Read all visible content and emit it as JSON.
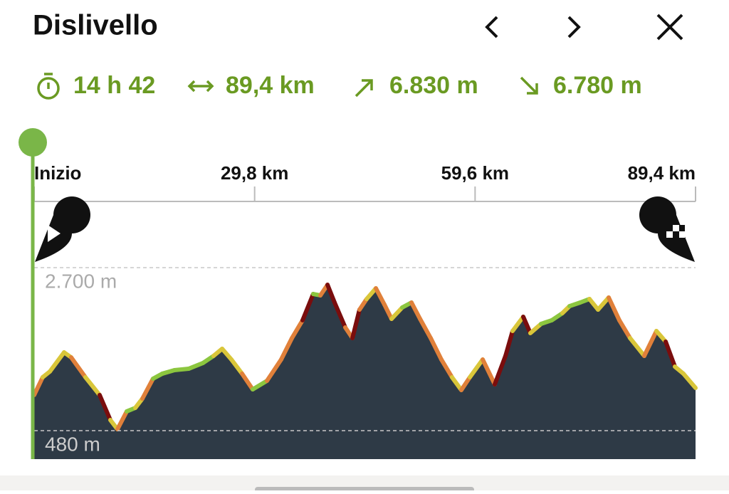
{
  "header": {
    "title": "Dislivello"
  },
  "stats": {
    "duration": "14 h 42",
    "distance": "89,4 km",
    "ascent": "6.830 m",
    "descent": "6.780 m"
  },
  "chart_data": {
    "type": "area",
    "x": [
      0,
      1.15,
      2.12,
      4.04,
      5.0,
      6.93,
      8.85,
      10.3,
      11.26,
      12.51,
      13.67,
      14.63,
      16.07,
      17.32,
      18.96,
      20.88,
      22.81,
      24.25,
      25.41,
      26.66,
      28.1,
      29.54,
      31.47,
      33.39,
      34.84,
      36.28,
      37.72,
      38.69,
      39.65,
      40.61,
      42.05,
      43.02,
      43.98,
      44.94,
      46.19,
      47.35,
      48.31,
      49.75,
      51.0,
      52.16,
      53.6,
      55.04,
      56.48,
      57.74,
      58.89,
      60.63,
      62.26,
      63.71,
      64.67,
      66.11,
      67.07,
      68.52,
      69.96,
      71.4,
      72.37,
      73.81,
      75.06,
      76.22,
      77.66,
      79.1,
      80.55,
      82.47,
      84.11,
      85.36,
      86.61,
      87.76,
      89.4
    ],
    "values": [
      965,
      1207,
      1285,
      1546,
      1478,
      1207,
      965,
      625,
      499,
      742,
      790,
      916,
      1188,
      1256,
      1304,
      1323,
      1401,
      1498,
      1595,
      1449,
      1256,
      1042,
      1159,
      1449,
      1740,
      1983,
      2341,
      2322,
      2467,
      2225,
      1886,
      1740,
      2128,
      2273,
      2419,
      2196,
      2002,
      2157,
      2225,
      2002,
      1740,
      1449,
      1207,
      1033,
      1207,
      1449,
      1110,
      1498,
      1837,
      2031,
      1808,
      1934,
      1983,
      2080,
      2176,
      2225,
      2273,
      2128,
      2293,
      1983,
      1740,
      1498,
      1837,
      1692,
      1352,
      1256,
      1062
    ],
    "xlim": [
      0,
      89.4
    ],
    "xticks": [
      {
        "value": 0,
        "label": "Inizio"
      },
      {
        "value": 29.8,
        "label": "29,8 km"
      },
      {
        "value": 59.6,
        "label": "59,6 km"
      },
      {
        "value": 89.4,
        "label": "89,4 km"
      }
    ],
    "ylim": [
      92,
      2700
    ],
    "yticks": [
      {
        "value": 2700,
        "label": "2.700 m"
      },
      {
        "value": 480,
        "label": "480 m"
      }
    ],
    "color": "#2e3a46",
    "line_colors": [
      "#8cc63f",
      "#d9c63a",
      "#e0803a",
      "#7a0d0d"
    ],
    "grid": true
  }
}
